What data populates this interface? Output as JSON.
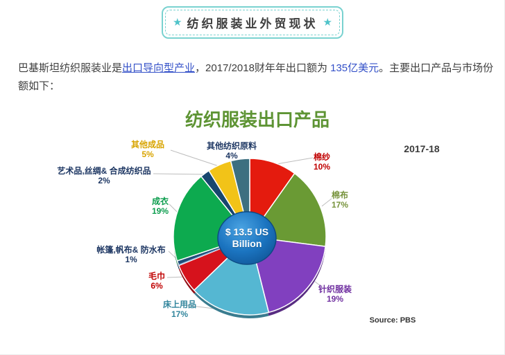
{
  "banner": {
    "star": "★",
    "title": "纺织服装业外贸现状"
  },
  "paragraph": {
    "part1": "巴基斯坦纺织服装业是",
    "link1": "出口导向型产业",
    "part2": "，2017/2018财年年出口额为 ",
    "link2": "135亿美元",
    "part3": "。主要出口产品与市场份额如下："
  },
  "chart": {
    "title_label": "纺织服装出口产品",
    "year_label": "2017-18",
    "source": "Source: PBS",
    "center_line1": "$ 13.5 US",
    "center_line2": "Billion"
  },
  "chart_data": {
    "type": "pie",
    "title": "纺织服装出口产品",
    "period": "2017-18",
    "center_label": "$ 13.5 US Billion",
    "total": "$ 13.5 US Billion",
    "source": "Source: PBS",
    "start_angle_deg": 0,
    "direction": "clockwise",
    "unit": "%",
    "slices": [
      {
        "label": "棉纱",
        "value": 10,
        "color": "#e41b0e",
        "label_color": "#c00000"
      },
      {
        "label": "棉布",
        "value": 17,
        "color": "#6a9a34",
        "label_color": "#77933c"
      },
      {
        "label": "针织服装",
        "value": 19,
        "color": "#8140bf",
        "label_color": "#7030a0"
      },
      {
        "label": "床上用品",
        "value": 17,
        "color": "#55b7d2",
        "label_color": "#31859c"
      },
      {
        "label": "毛巾",
        "value": 6,
        "color": "#d6121c",
        "label_color": "#c00000"
      },
      {
        "label": "帐篷,帆布& 防水布",
        "value": 1,
        "color": "#1f4e79",
        "label_color": "#1f3864"
      },
      {
        "label": "成衣",
        "value": 19,
        "color": "#0daa4f",
        "label_color": "#0c9d4e"
      },
      {
        "label": "艺术品,丝绸& 合成纺织品",
        "value": 2,
        "color": "#17466e",
        "label_color": "#1f3864"
      },
      {
        "label": "其他成品",
        "value": 5,
        "color": "#f2c318",
        "label_color": "#d8a400"
      },
      {
        "label": "其他纺织原料",
        "value": 4,
        "color": "#3d6f80",
        "label_color": "#1f3864"
      }
    ]
  }
}
